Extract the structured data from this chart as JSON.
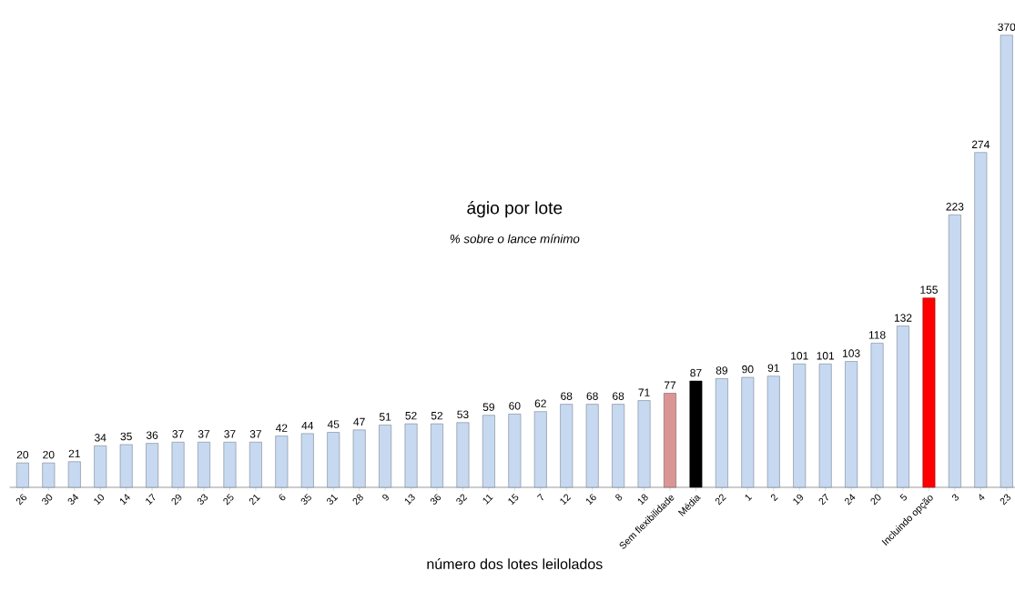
{
  "chart_data": {
    "type": "bar",
    "title": "ágio por lote",
    "subtitle": "*% sobre o lance mínimo*",
    "xlabel": "número dos lotes leilolados",
    "categories": [
      "26",
      "30",
      "34",
      "10",
      "14",
      "17",
      "29",
      "33",
      "25",
      "21",
      "6",
      "35",
      "31",
      "28",
      "9",
      "13",
      "36",
      "32",
      "11",
      "15",
      "7",
      "12",
      "16",
      "8",
      "18",
      "Sem flexibilidade",
      "Média",
      "22",
      "1",
      "2",
      "19",
      "27",
      "24",
      "20",
      "5",
      "Incluindo opção",
      "3",
      "4",
      "23"
    ],
    "values": [
      20,
      20,
      21,
      34,
      35,
      36,
      37,
      37,
      37,
      37,
      42,
      44,
      45,
      47,
      51,
      52,
      52,
      53,
      59,
      60,
      62,
      68,
      68,
      68,
      71,
      77,
      87,
      89,
      90,
      91,
      101,
      101,
      103,
      118,
      132,
      155,
      223,
      274,
      370
    ],
    "colors": [
      "#c6d9f1",
      "#c6d9f1",
      "#c6d9f1",
      "#c6d9f1",
      "#c6d9f1",
      "#c6d9f1",
      "#c6d9f1",
      "#c6d9f1",
      "#c6d9f1",
      "#c6d9f1",
      "#c6d9f1",
      "#c6d9f1",
      "#c6d9f1",
      "#c6d9f1",
      "#c6d9f1",
      "#c6d9f1",
      "#c6d9f1",
      "#c6d9f1",
      "#c6d9f1",
      "#c6d9f1",
      "#c6d9f1",
      "#c6d9f1",
      "#c6d9f1",
      "#c6d9f1",
      "#c6d9f1",
      "#d99694",
      "#000000",
      "#c6d9f1",
      "#c6d9f1",
      "#c6d9f1",
      "#c6d9f1",
      "#c6d9f1",
      "#c6d9f1",
      "#c6d9f1",
      "#c6d9f1",
      "#ff0000",
      "#c6d9f1",
      "#c6d9f1",
      "#c6d9f1"
    ],
    "ylim": [
      0,
      370
    ],
    "data_labels": true
  }
}
